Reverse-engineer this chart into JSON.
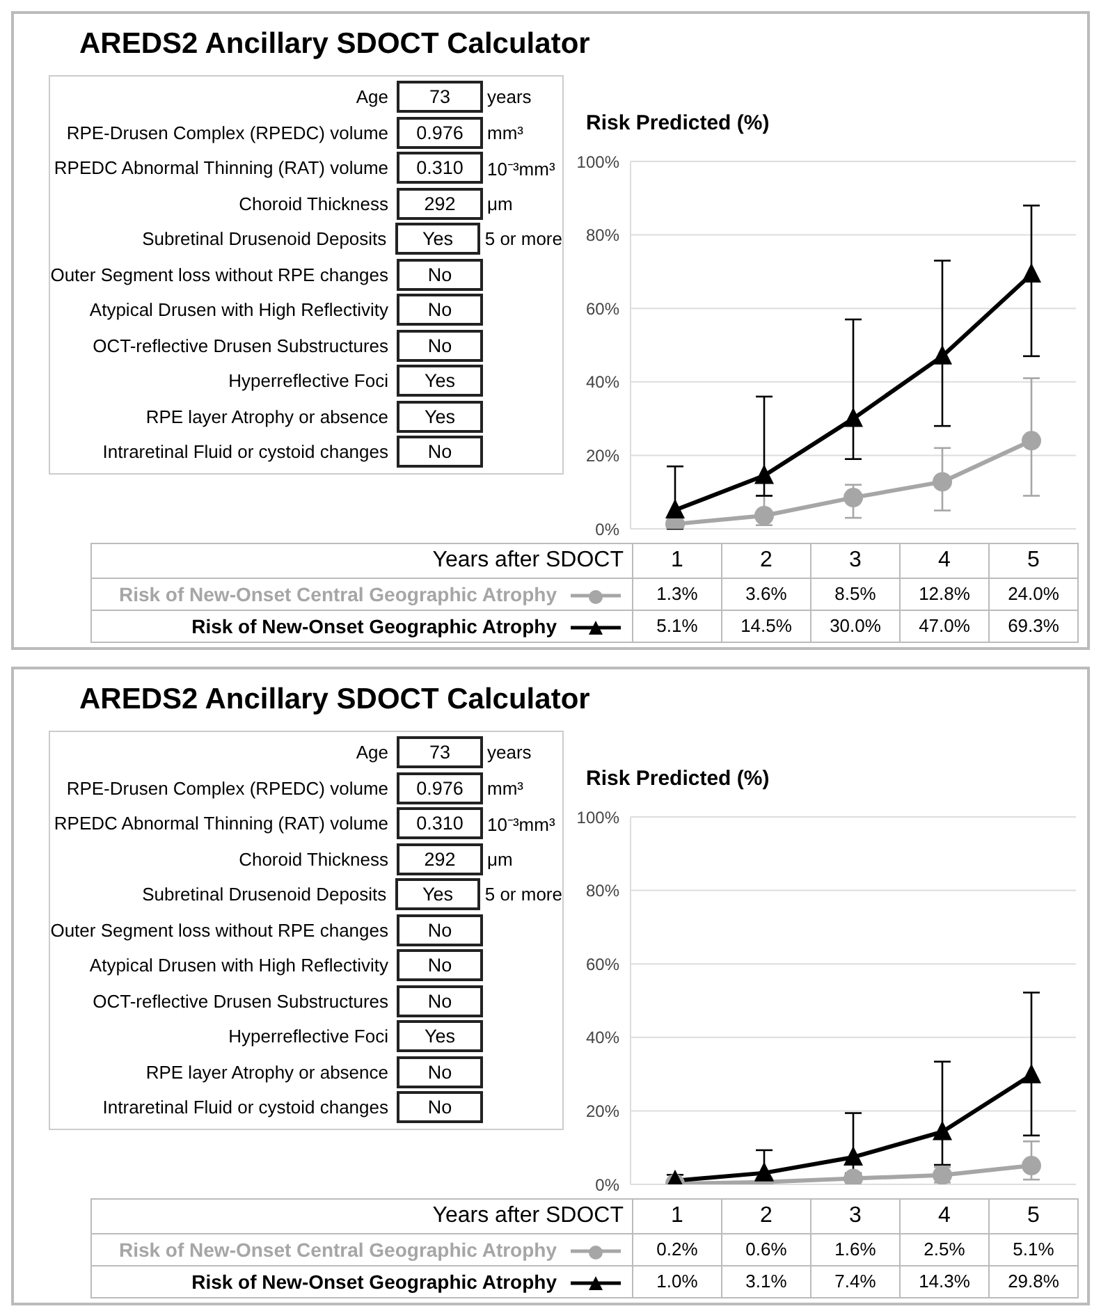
{
  "chart_data": [
    {
      "type": "other",
      "title": "AREDS2 Ancillary SDOCT Calculator",
      "categories": [
        "Age",
        "RPE-Drusen Complex (RPEDC) volume",
        "RPEDC Abnormal Thinning (RAT) volume",
        "Choroid Thickness",
        "Subretinal Drusenoid Deposits",
        "Outer Segment loss without RPE changes",
        "Atypical Drusen with High Reflectivity",
        "OCT-reflective Drusen Substructures",
        "Hyperreflective Foci",
        "RPE layer Atrophy or absence",
        "Intraretinal Fluid or cystoid changes"
      ],
      "value_labels": [
        "73",
        "0.976",
        "0.310",
        "292",
        "Yes",
        "No",
        "No",
        "No",
        "Yes",
        "Yes",
        "No"
      ],
      "annotations": [
        "years",
        "mm³",
        "10⁻³mm³",
        "μm",
        "5 or more"
      ]
    },
    {
      "type": "line",
      "ylabel": "Risk Predicted (%)",
      "xlabel": "Years after SDOCT",
      "categories": [
        "1",
        "2",
        "3",
        "4",
        "5"
      ],
      "series": [
        {
          "name": "Risk of New-Onset Central Geographic Atrophy",
          "color": "#a6a6a6",
          "marker": "circle",
          "values": [
            1.3,
            3.6,
            8.5,
            12.8,
            24.0
          ],
          "value_labels": [
            "1.3%",
            "3.6%",
            "8.5%",
            "12.8%",
            "24.0%"
          ],
          "errors": [
            null,
            [
              1,
              9
            ],
            [
              3,
              12
            ],
            [
              5,
              22
            ],
            [
              9,
              41
            ]
          ]
        },
        {
          "name": "Risk of New-Onset Geographic Atrophy",
          "color": "#000000",
          "marker": "triangle",
          "values": [
            5.1,
            14.5,
            30.0,
            47.0,
            69.3
          ],
          "value_labels": [
            "5.1%",
            "14.5%",
            "30.0%",
            "47.0%",
            "69.3%"
          ],
          "errors": [
            [
              0,
              17
            ],
            [
              9,
              36
            ],
            [
              19,
              57
            ],
            [
              28,
              73
            ],
            [
              47,
              88
            ]
          ]
        }
      ],
      "ylim": [
        0,
        100
      ],
      "yticks": [
        {
          "value": 0,
          "label": "0%"
        },
        {
          "value": 20,
          "label": "20%"
        },
        {
          "value": 40,
          "label": "40%"
        },
        {
          "value": 60,
          "label": "60%"
        },
        {
          "value": 80,
          "label": "80%"
        },
        {
          "value": 100,
          "label": "100%"
        }
      ],
      "grid": "y",
      "legend": "bottom",
      "line_style": "solid"
    },
    {
      "type": "other",
      "title": "AREDS2 Ancillary SDOCT Calculator",
      "categories": [
        "Age",
        "RPE-Drusen Complex (RPEDC) volume",
        "RPEDC Abnormal Thinning (RAT) volume",
        "Choroid Thickness",
        "Subretinal Drusenoid Deposits",
        "Outer Segment loss without RPE changes",
        "Atypical Drusen with High Reflectivity",
        "OCT-reflective Drusen Substructures",
        "Hyperreflective Foci",
        "RPE layer Atrophy or absence",
        "Intraretinal Fluid or cystoid changes"
      ],
      "value_labels": [
        "73",
        "0.976",
        "0.310",
        "292",
        "Yes",
        "No",
        "No",
        "No",
        "Yes",
        "No",
        "No"
      ],
      "annotations": [
        "years",
        "mm³",
        "10⁻³mm³",
        "μm",
        "5 or more"
      ]
    },
    {
      "type": "line",
      "ylabel": "Risk Predicted (%)",
      "xlabel": "Years after SDOCT",
      "categories": [
        "1",
        "2",
        "3",
        "4",
        "5"
      ],
      "series": [
        {
          "name": "Risk of New-Onset Central Geographic Atrophy",
          "color": "#a6a6a6",
          "marker": "circle",
          "values": [
            0.2,
            0.6,
            1.6,
            2.5,
            5.1
          ],
          "value_labels": [
            "0.2%",
            "0.6%",
            "1.6%",
            "2.5%",
            "5.1%"
          ],
          "errors": [
            null,
            null,
            null,
            [
              0.5,
              4.7
            ],
            [
              1.3,
              11.7
            ]
          ]
        },
        {
          "name": "Risk of New-Onset Geographic Atrophy",
          "color": "#000000",
          "marker": "triangle",
          "values": [
            1.0,
            3.1,
            7.4,
            14.3,
            29.8
          ],
          "value_labels": [
            "1.0%",
            "3.1%",
            "7.4%",
            "14.3%",
            "29.8%"
          ],
          "errors": [
            [
              0.3,
              2.6
            ],
            [
              1,
              9.3
            ],
            [
              3,
              19.4
            ],
            [
              5.3,
              33.4
            ],
            [
              13.3,
              52.2
            ]
          ]
        }
      ],
      "ylim": [
        0,
        100
      ],
      "yticks": [
        {
          "value": 0,
          "label": "0%"
        },
        {
          "value": 20,
          "label": "20%"
        },
        {
          "value": 40,
          "label": "40%"
        },
        {
          "value": 60,
          "label": "60%"
        },
        {
          "value": 80,
          "label": "80%"
        },
        {
          "value": 100,
          "label": "100%"
        }
      ],
      "grid": "y",
      "legend": "bottom",
      "line_style": "solid"
    }
  ]
}
